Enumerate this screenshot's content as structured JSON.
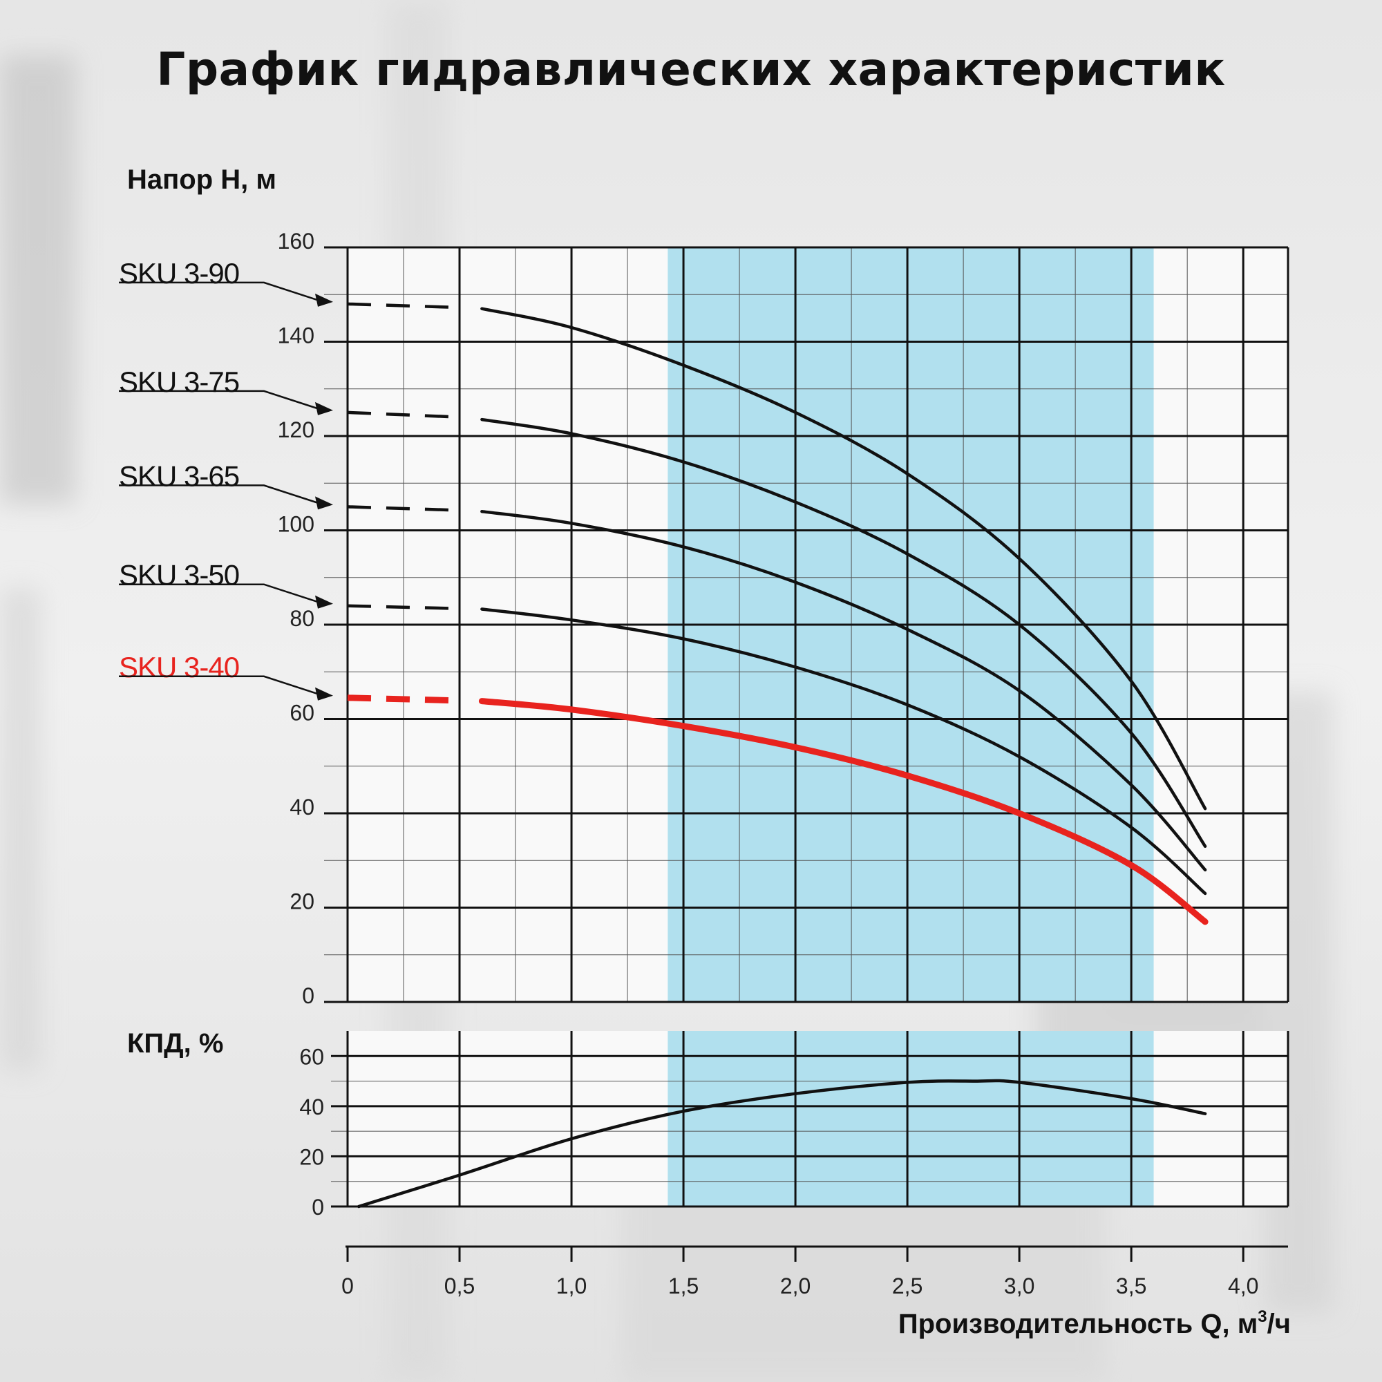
{
  "title": "График гидравлических характеристик",
  "chart_data": [
    {
      "type": "line",
      "ylabel": "Напор H, м",
      "xlabel": "Производительность Q, м³/ч",
      "xlim": [
        0,
        4.2
      ],
      "ylim": [
        0,
        160
      ],
      "x_ticks": [
        0,
        0.5,
        1.0,
        1.5,
        2.0,
        2.5,
        3.0,
        3.5,
        4.0
      ],
      "x_tick_labels": [
        "0",
        "0,5",
        "1,0",
        "1,5",
        "2,0",
        "2,5",
        "3,0",
        "3,5",
        "4,0"
      ],
      "y_ticks": [
        0,
        20,
        40,
        60,
        80,
        100,
        120,
        140,
        160
      ],
      "y_tick_labels": [
        "0",
        "20",
        "40",
        "60",
        "80",
        "100",
        "120",
        "140",
        "160"
      ],
      "grid": true,
      "recommended_range": [
        1.43,
        3.6
      ],
      "recommended_range_color": "#b1e0ee",
      "dashed_range": [
        0,
        0.6
      ],
      "series": [
        {
          "name": "SKU 3-90",
          "color": "#111111",
          "x": [
            0,
            0.3,
            0.6,
            1.0,
            1.5,
            2.0,
            2.5,
            3.0,
            3.5,
            3.83
          ],
          "y": [
            148,
            147.5,
            147,
            143,
            135,
            125,
            112,
            94,
            68,
            41
          ]
        },
        {
          "name": "SKU 3-75",
          "color": "#111111",
          "x": [
            0,
            0.3,
            0.6,
            1.0,
            1.5,
            2.0,
            2.5,
            3.0,
            3.5,
            3.83
          ],
          "y": [
            125,
            124.5,
            123.5,
            120.5,
            114.5,
            106,
            95,
            80,
            57,
            33
          ]
        },
        {
          "name": "SKU 3-65",
          "color": "#111111",
          "x": [
            0,
            0.3,
            0.6,
            1.0,
            1.5,
            2.0,
            2.5,
            3.0,
            3.5,
            3.83
          ],
          "y": [
            105,
            104.5,
            104,
            101.5,
            96.5,
            89,
            79,
            66,
            46,
            28
          ]
        },
        {
          "name": "SKU 3-50",
          "color": "#111111",
          "x": [
            0,
            0.3,
            0.6,
            1.0,
            1.5,
            2.0,
            2.5,
            3.0,
            3.5,
            3.83
          ],
          "y": [
            84,
            83.7,
            83.3,
            81,
            77,
            71,
            63,
            52,
            37,
            23
          ]
        },
        {
          "name": "SKU 3-40",
          "color": "#e8231e",
          "x": [
            0,
            0.3,
            0.6,
            1.0,
            1.5,
            2.0,
            2.5,
            3.0,
            3.5,
            3.83
          ],
          "y": [
            64.5,
            64.2,
            63.8,
            62,
            58.5,
            54,
            48,
            40,
            29,
            17
          ]
        }
      ]
    },
    {
      "type": "line",
      "ylabel": "КПД, %",
      "xlim": [
        0,
        4.2
      ],
      "ylim": [
        0,
        70
      ],
      "y_ticks": [
        0,
        20,
        40,
        60
      ],
      "y_tick_labels": [
        "0",
        "20",
        "40",
        "60"
      ],
      "grid": true,
      "recommended_range": [
        1.43,
        3.6
      ],
      "series": [
        {
          "name": "",
          "color": "#111111",
          "x": [
            0.05,
            0.5,
            1.0,
            1.5,
            2.0,
            2.5,
            2.8,
            3.0,
            3.5,
            3.83
          ],
          "y": [
            0,
            12.5,
            27,
            38,
            45,
            49.5,
            50,
            49.5,
            43,
            37
          ]
        }
      ]
    }
  ]
}
